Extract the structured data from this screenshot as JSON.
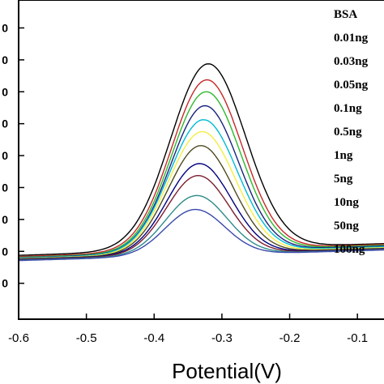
{
  "chart_data": {
    "type": "line",
    "title": "",
    "xlabel": "Potential(V)",
    "ylabel": "",
    "xlim": [
      -0.6,
      -0.05
    ],
    "ylim": [
      -0.08,
      0.72
    ],
    "x_ticks": [
      "-0.6",
      "-0.5",
      "-0.4",
      "-0.3",
      "-0.2",
      "-0.1"
    ],
    "x_tick_values": [
      -0.6,
      -0.5,
      -0.4,
      -0.3,
      -0.2,
      -0.1
    ],
    "y_tick_labels": [
      "0",
      "0",
      "0",
      "0",
      "0",
      "0",
      "0",
      "0",
      "0"
    ],
    "y_tick_values": [
      0.65,
      0.57,
      0.49,
      0.41,
      0.33,
      0.25,
      0.17,
      0.09,
      0.01
    ],
    "grid": false,
    "legend_position": "top-right",
    "series": [
      {
        "name": "BSA",
        "color": "#000000",
        "peak_x": -0.32,
        "peak_y": 0.56,
        "sigma": 0.055,
        "base_left": 0.08,
        "base_right": 0.11
      },
      {
        "name": "0.01ng",
        "color": "#c62828",
        "peak_x": -0.322,
        "peak_y": 0.52,
        "sigma": 0.052,
        "base_left": 0.077,
        "base_right": 0.108
      },
      {
        "name": "0.03ng",
        "color": "#2eb82e",
        "peak_x": -0.323,
        "peak_y": 0.49,
        "sigma": 0.051,
        "base_left": 0.075,
        "base_right": 0.106
      },
      {
        "name": "0.05ng",
        "color": "#1a237e",
        "peak_x": -0.325,
        "peak_y": 0.455,
        "sigma": 0.05,
        "base_left": 0.074,
        "base_right": 0.104
      },
      {
        "name": "0.1ng",
        "color": "#00bcd4",
        "peak_x": -0.327,
        "peak_y": 0.42,
        "sigma": 0.05,
        "base_left": 0.073,
        "base_right": 0.102
      },
      {
        "name": "0.5ng",
        "color": "#f4ee42",
        "peak_x": -0.329,
        "peak_y": 0.39,
        "sigma": 0.049,
        "base_left": 0.072,
        "base_right": 0.1
      },
      {
        "name": "1ng",
        "color": "#4e4a22",
        "peak_x": -0.331,
        "peak_y": 0.355,
        "sigma": 0.048,
        "base_left": 0.071,
        "base_right": 0.098
      },
      {
        "name": "5ng",
        "color": "#000080",
        "peak_x": -0.333,
        "peak_y": 0.31,
        "sigma": 0.047,
        "base_left": 0.07,
        "base_right": 0.097
      },
      {
        "name": "10ng",
        "color": "#7b1f2f",
        "peak_x": -0.335,
        "peak_y": 0.28,
        "sigma": 0.046,
        "base_left": 0.069,
        "base_right": 0.096
      },
      {
        "name": "50ng",
        "color": "#2e8b8b",
        "peak_x": -0.337,
        "peak_y": 0.23,
        "sigma": 0.045,
        "base_left": 0.068,
        "base_right": 0.095
      },
      {
        "name": "100ng",
        "color": "#3949ab",
        "peak_x": -0.339,
        "peak_y": 0.195,
        "sigma": 0.044,
        "base_left": 0.067,
        "base_right": 0.094
      }
    ]
  }
}
